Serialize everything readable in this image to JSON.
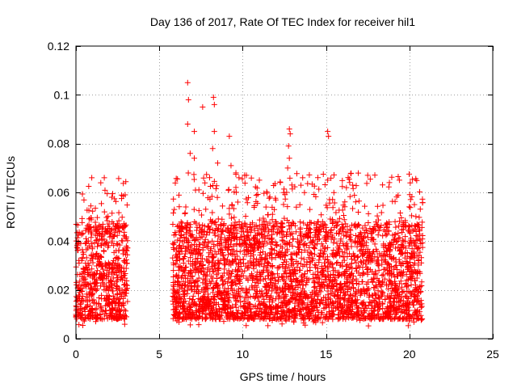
{
  "chart_data": {
    "type": "scatter",
    "title": "Day 136 of 2017, Rate Of TEC Index for receiver hil1",
    "xlabel": "GPS time / hours",
    "ylabel": "ROTI / TECUs",
    "xlim": [
      0,
      25
    ],
    "ylim": [
      0,
      0.12
    ],
    "x_ticks": [
      0,
      5,
      10,
      15,
      20,
      25
    ],
    "x_tick_labels": [
      "0",
      "5",
      "10",
      "15",
      "20",
      "25"
    ],
    "y_ticks": [
      0,
      0.02,
      0.04,
      0.06,
      0.08,
      0.1,
      0.12
    ],
    "y_tick_labels": [
      "0",
      "0.02",
      "0.04",
      "0.06",
      "0.08",
      "0.1",
      "0.12"
    ],
    "grid": true,
    "marker": "+",
    "color": "#ff0000",
    "series": [
      {
        "name": "ROTI",
        "segments": [
          {
            "x_range": [
              0.0,
              3.1
            ],
            "typical_range": [
              0.005,
              0.045
            ],
            "max": 0.066
          },
          {
            "x_range": [
              5.8,
              20.8
            ],
            "typical_range": [
              0.005,
              0.045
            ],
            "max": 0.105
          }
        ],
        "peaks": [
          {
            "x": 0.95,
            "y": 0.066
          },
          {
            "x": 1.7,
            "y": 0.066
          },
          {
            "x": 2.15,
            "y": 0.058
          },
          {
            "x": 2.95,
            "y": 0.059
          },
          {
            "x": 5.9,
            "y": 0.053
          },
          {
            "x": 6.7,
            "y": 0.105
          },
          {
            "x": 6.75,
            "y": 0.098
          },
          {
            "x": 6.7,
            "y": 0.088
          },
          {
            "x": 6.85,
            "y": 0.076
          },
          {
            "x": 7.1,
            "y": 0.085
          },
          {
            "x": 7.1,
            "y": 0.074
          },
          {
            "x": 7.6,
            "y": 0.095
          },
          {
            "x": 8.25,
            "y": 0.099
          },
          {
            "x": 8.3,
            "y": 0.096
          },
          {
            "x": 8.3,
            "y": 0.085
          },
          {
            "x": 8.2,
            "y": 0.078
          },
          {
            "x": 8.5,
            "y": 0.072
          },
          {
            "x": 9.2,
            "y": 0.083
          },
          {
            "x": 9.3,
            "y": 0.071
          },
          {
            "x": 11.0,
            "y": 0.065
          },
          {
            "x": 12.8,
            "y": 0.086
          },
          {
            "x": 12.85,
            "y": 0.084
          },
          {
            "x": 12.75,
            "y": 0.079
          },
          {
            "x": 12.8,
            "y": 0.074
          },
          {
            "x": 12.7,
            "y": 0.07
          },
          {
            "x": 13.6,
            "y": 0.066
          },
          {
            "x": 15.1,
            "y": 0.085
          },
          {
            "x": 15.15,
            "y": 0.083
          },
          {
            "x": 15.1,
            "y": 0.065
          },
          {
            "x": 16.6,
            "y": 0.063
          },
          {
            "x": 17.5,
            "y": 0.067
          },
          {
            "x": 18.8,
            "y": 0.064
          },
          {
            "x": 19.4,
            "y": 0.065
          },
          {
            "x": 20.3,
            "y": 0.055
          }
        ]
      }
    ]
  }
}
